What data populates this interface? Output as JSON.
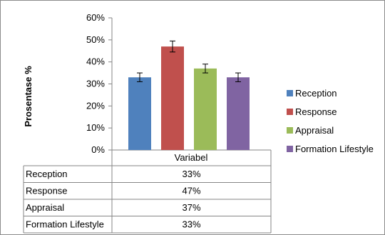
{
  "chart_data": {
    "type": "bar",
    "title": "",
    "ylabel": "Prosentase %",
    "xlabel": "Variabel",
    "ylim": [
      0,
      60
    ],
    "y_ticks": [
      "0%",
      "10%",
      "20%",
      "30%",
      "40%",
      "50%",
      "60%"
    ],
    "grid": false,
    "legend_position": "right",
    "series": [
      {
        "name": "Reception",
        "value": 33,
        "value_label": "33%",
        "error": 2,
        "color": "#4f81bd"
      },
      {
        "name": "Response",
        "value": 47,
        "value_label": "47%",
        "error": 2.5,
        "color": "#c0504d"
      },
      {
        "name": "Appraisal",
        "value": 37,
        "value_label": "37%",
        "error": 2,
        "color": "#9bbb59"
      },
      {
        "name": "Formation Lifestyle",
        "value": 33,
        "value_label": "33%",
        "error": 2,
        "color": "#8064a2"
      }
    ]
  }
}
